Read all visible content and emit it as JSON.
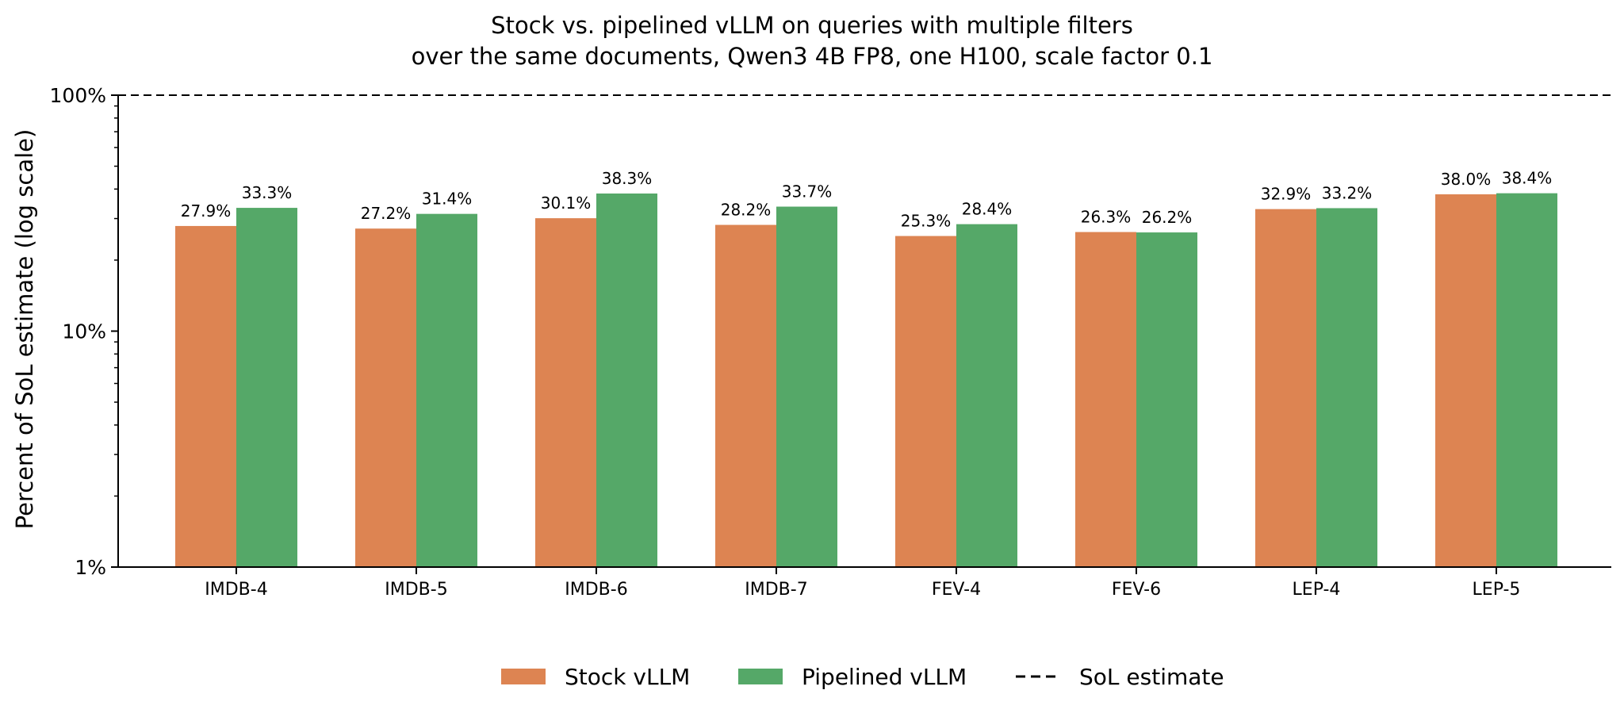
{
  "chart_data": {
    "type": "bar",
    "title_lines": [
      "Stock vs. pipelined vLLM on queries with multiple filters",
      "over the same documents, Qwen3 4B FP8, one H100, scale factor 0.1"
    ],
    "xlabel": "",
    "ylabel": "Percent of SoL estimate (log scale)",
    "yscale": "log",
    "ylim": [
      1,
      100
    ],
    "yticks": [
      {
        "value": 1,
        "label": "1%"
      },
      {
        "value": 10,
        "label": "10%"
      },
      {
        "value": 100,
        "label": "100%"
      }
    ],
    "categories": [
      "IMDB-4",
      "IMDB-5",
      "IMDB-6",
      "IMDB-7",
      "FEV-4",
      "FEV-6",
      "LEP-4",
      "LEP-5"
    ],
    "series": [
      {
        "name": "Stock vLLM",
        "color": "#dd8452",
        "values": [
          27.9,
          27.2,
          30.1,
          28.2,
          25.3,
          26.3,
          32.9,
          38.0
        ],
        "labels": [
          "27.9%",
          "27.2%",
          "30.1%",
          "28.2%",
          "25.3%",
          "26.3%",
          "32.9%",
          "38.0%"
        ]
      },
      {
        "name": "Pipelined vLLM",
        "color": "#55a868",
        "values": [
          33.3,
          31.4,
          38.3,
          33.7,
          28.4,
          26.2,
          33.2,
          38.4
        ],
        "labels": [
          "33.3%",
          "31.4%",
          "38.3%",
          "33.7%",
          "28.4%",
          "26.2%",
          "33.2%",
          "38.4%"
        ]
      }
    ],
    "reference_line": {
      "name": "SoL estimate",
      "value": 100,
      "style": "dashed"
    },
    "legend": {
      "placement": "bottom-center"
    },
    "grid": false
  }
}
